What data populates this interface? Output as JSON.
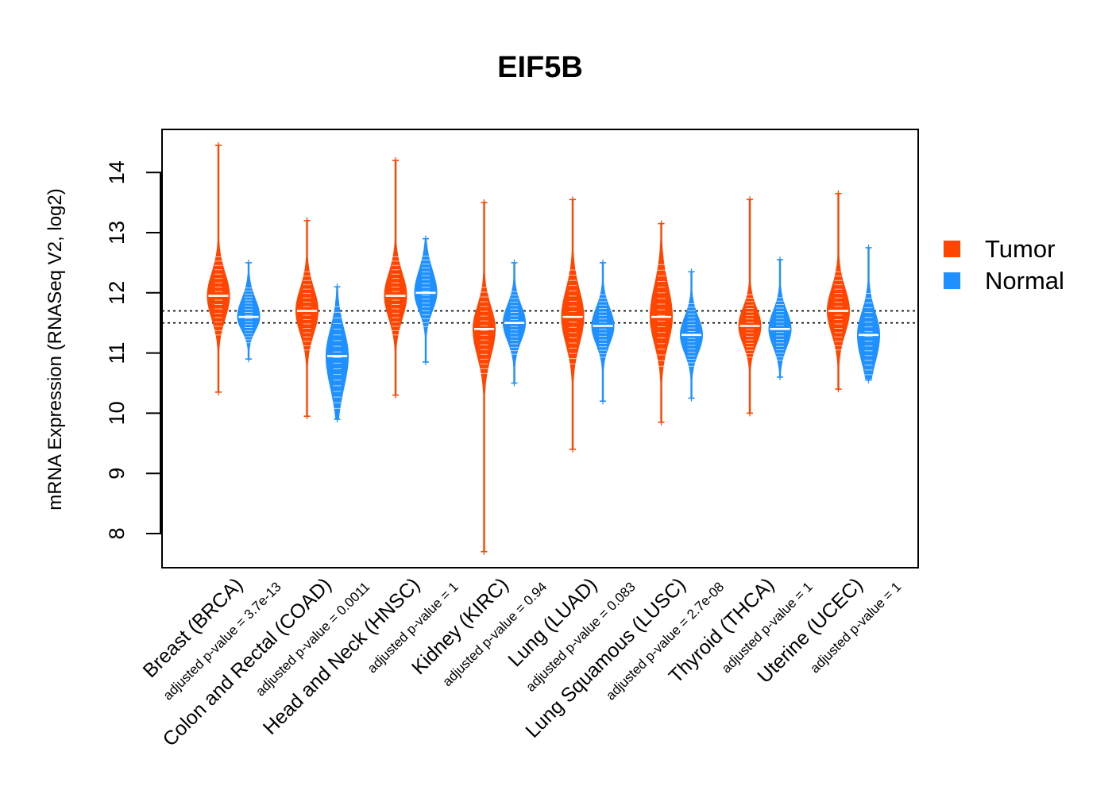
{
  "chart_data": {
    "type": "violin",
    "title": "EIF5B",
    "ylabel": "mRNA Expression (RNASeq V2, log2)",
    "xlabel": "",
    "ylim": [
      7.4,
      14.7
    ],
    "yticks": [
      8,
      9,
      10,
      11,
      12,
      13,
      14
    ],
    "reference_lines": [
      11.5,
      11.7
    ],
    "colors": {
      "tumor": "#FF4500",
      "normal": "#1E90FF"
    },
    "legend": {
      "position": "right",
      "entries": [
        "Tumor",
        "Normal"
      ]
    },
    "categories": [
      {
        "label": "Breast (BRCA)",
        "pvalue": "adjusted p-value = 3.7e-13",
        "tumor": {
          "median": 11.95,
          "q1": 11.7,
          "q3": 12.2,
          "min": 10.35,
          "max": 14.45
        },
        "normal": {
          "median": 11.6,
          "q1": 11.45,
          "q3": 11.8,
          "min": 10.9,
          "max": 12.5
        }
      },
      {
        "label": "Colon and Rectal (COAD)",
        "pvalue": "adjusted p-value = 0.0011",
        "tumor": {
          "median": 11.7,
          "q1": 11.45,
          "q3": 11.95,
          "min": 9.95,
          "max": 13.2
        },
        "normal": {
          "median": 10.95,
          "q1": 10.6,
          "q3": 11.25,
          "min": 9.9,
          "max": 12.1
        }
      },
      {
        "label": "Head and Neck (HNSC)",
        "pvalue": "adjusted p-value = 1",
        "tumor": {
          "median": 11.95,
          "q1": 11.7,
          "q3": 12.2,
          "min": 10.3,
          "max": 14.2
        },
        "normal": {
          "median": 12.0,
          "q1": 11.8,
          "q3": 12.25,
          "min": 10.85,
          "max": 12.9
        }
      },
      {
        "label": "Kidney (KIRC)",
        "pvalue": "adjusted p-value = 0.94",
        "tumor": {
          "median": 11.4,
          "q1": 11.1,
          "q3": 11.65,
          "min": 7.7,
          "max": 13.5
        },
        "normal": {
          "median": 11.5,
          "q1": 11.3,
          "q3": 11.7,
          "min": 10.5,
          "max": 12.5
        }
      },
      {
        "label": "Lung (LUAD)",
        "pvalue": "adjusted p-value = 0.083",
        "tumor": {
          "median": 11.6,
          "q1": 11.3,
          "q3": 11.9,
          "min": 9.4,
          "max": 13.55
        },
        "normal": {
          "median": 11.45,
          "q1": 11.25,
          "q3": 11.65,
          "min": 10.2,
          "max": 12.5
        }
      },
      {
        "label": "Lung Squamous (LUSC)",
        "pvalue": "adjusted p-value = 2.7e-08",
        "tumor": {
          "median": 11.6,
          "q1": 11.3,
          "q3": 11.95,
          "min": 9.85,
          "max": 13.15
        },
        "normal": {
          "median": 11.3,
          "q1": 11.1,
          "q3": 11.5,
          "min": 10.25,
          "max": 12.35
        }
      },
      {
        "label": "Thyroid (THCA)",
        "pvalue": "adjusted p-value = 1",
        "tumor": {
          "median": 11.45,
          "q1": 11.25,
          "q3": 11.65,
          "min": 10.0,
          "max": 13.55
        },
        "normal": {
          "median": 11.4,
          "q1": 11.2,
          "q3": 11.6,
          "min": 10.6,
          "max": 12.55
        }
      },
      {
        "label": "Uterine (UCEC)",
        "pvalue": "adjusted p-value = 1",
        "tumor": {
          "median": 11.7,
          "q1": 11.45,
          "q3": 11.95,
          "min": 10.4,
          "max": 13.65
        },
        "normal": {
          "median": 11.3,
          "q1": 11.0,
          "q3": 11.55,
          "min": 10.55,
          "max": 12.75
        }
      }
    ]
  }
}
